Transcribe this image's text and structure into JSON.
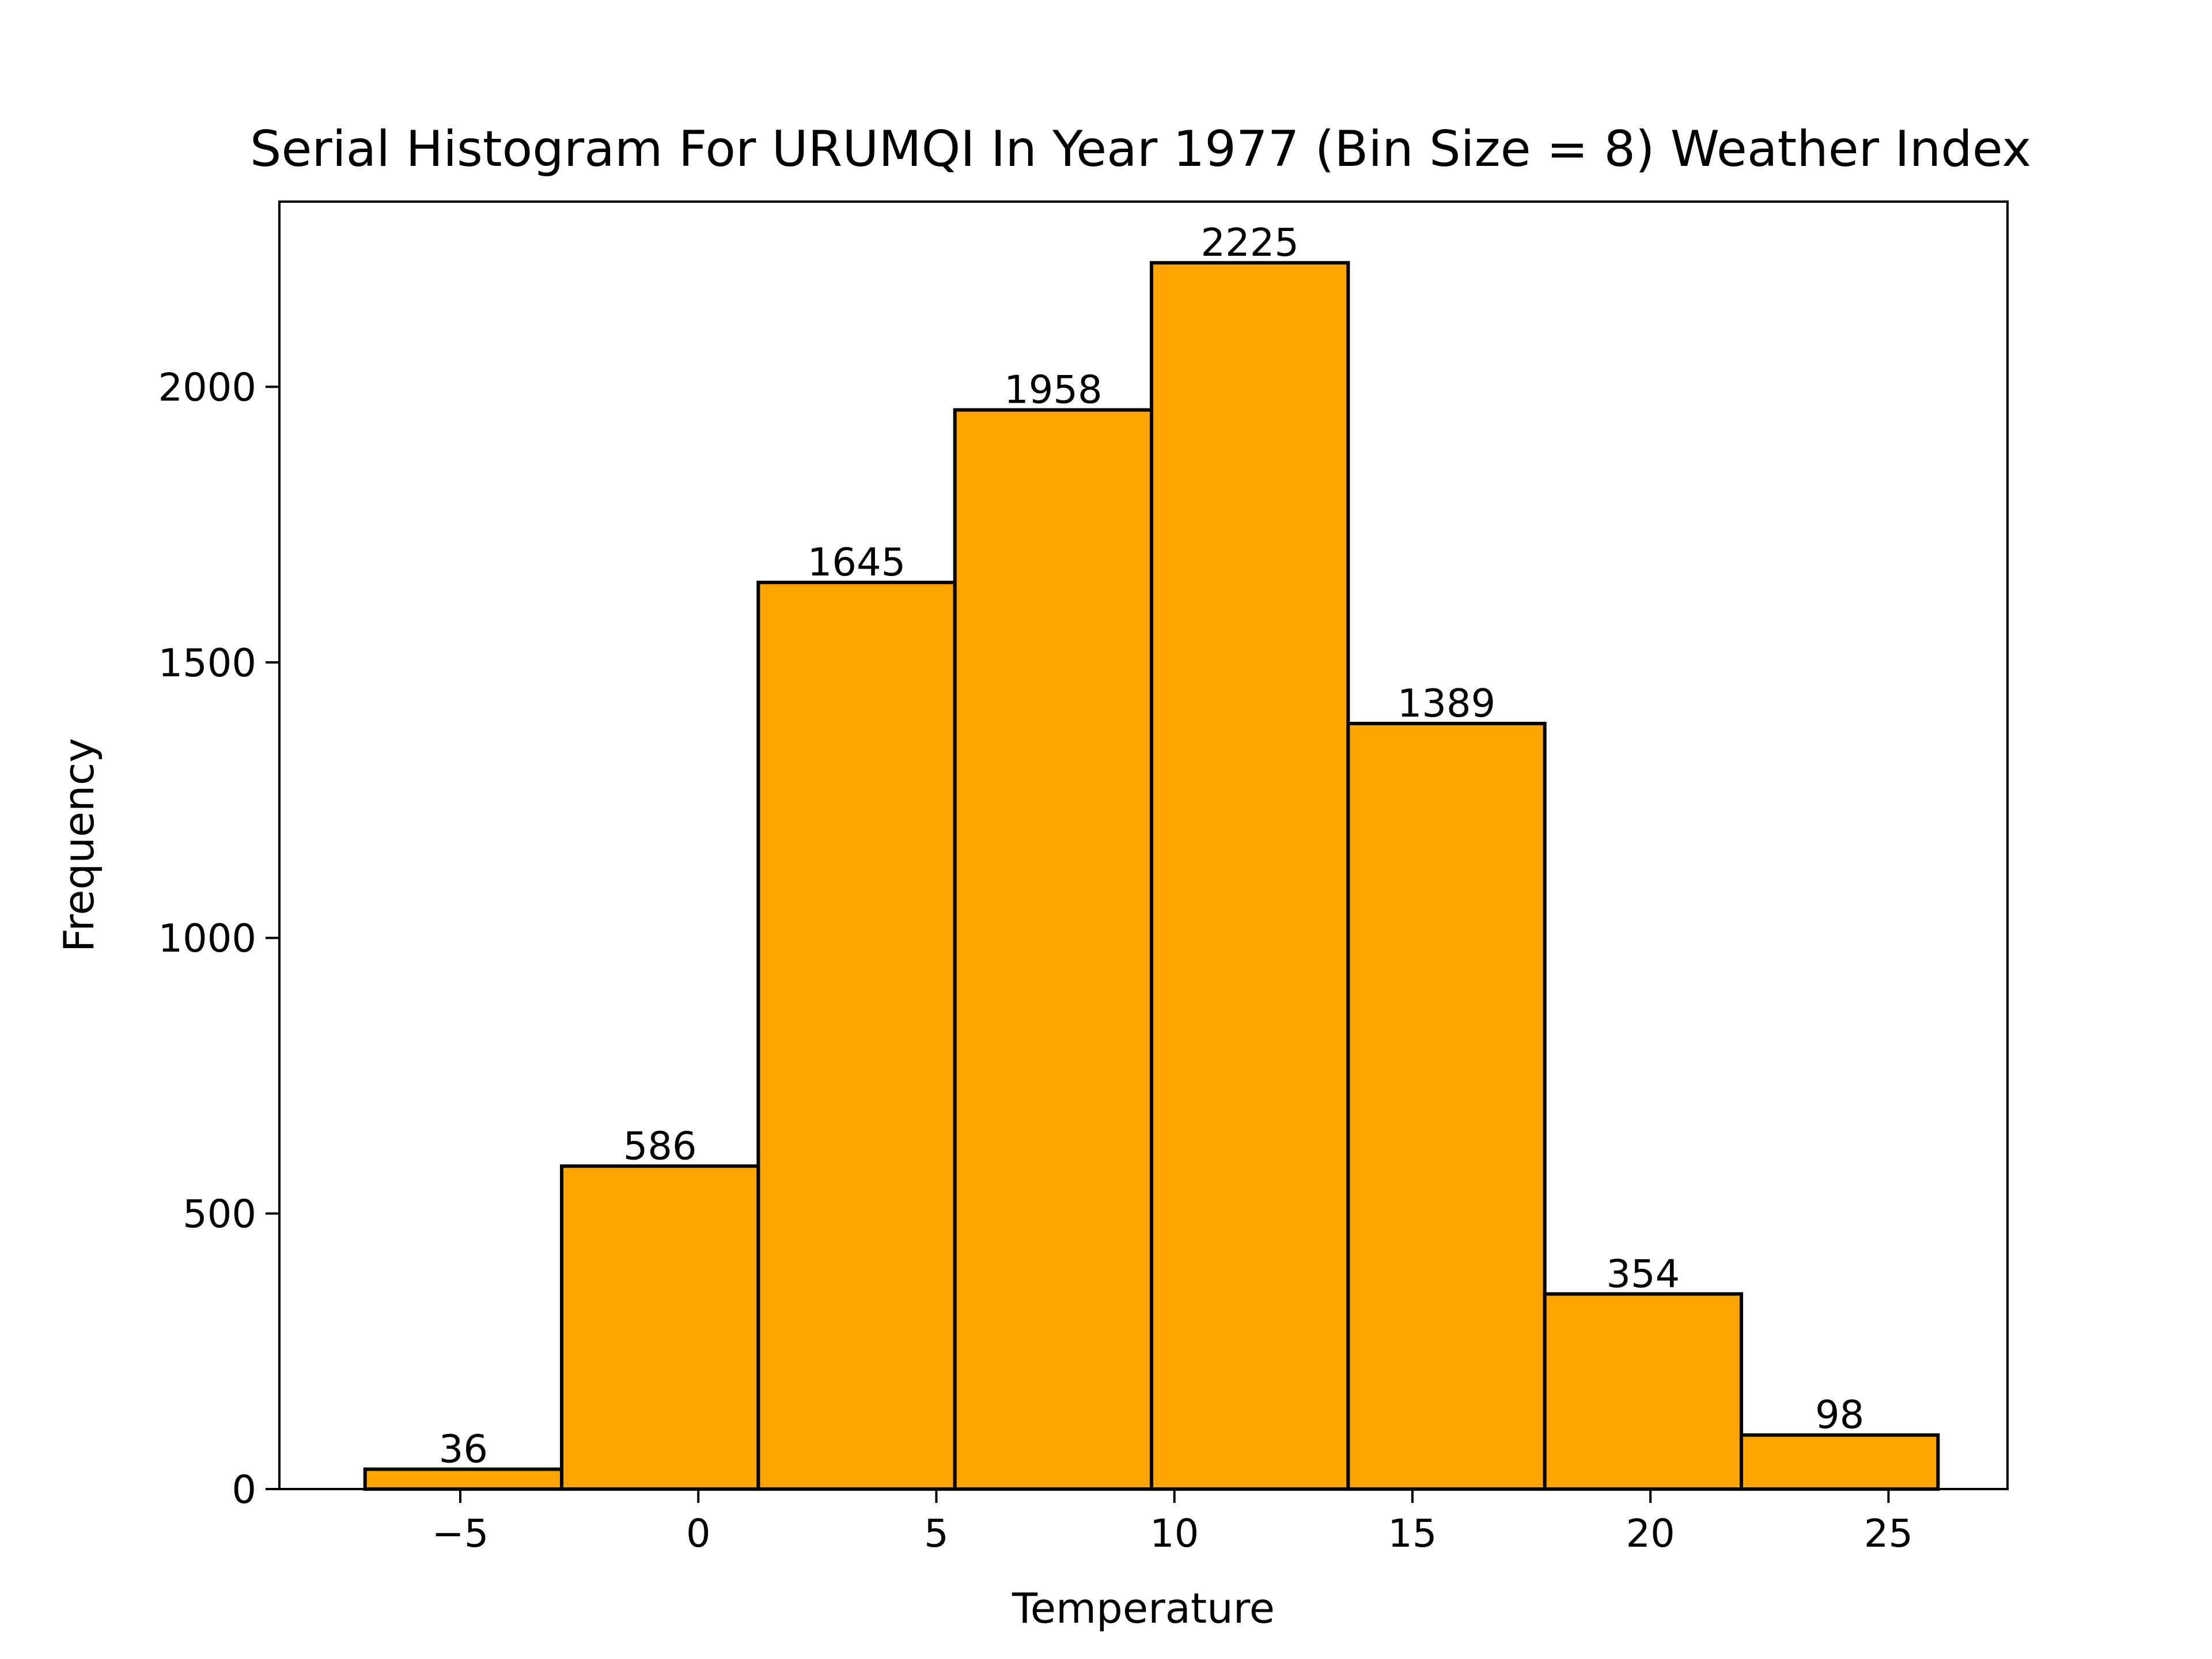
{
  "chart_data": {
    "type": "bar",
    "title": "Serial Histogram For URUMQI In Year 1977 (Bin Size = 8) Weather Index",
    "xlabel": "Temperature",
    "ylabel": "Frequency",
    "xlim": [
      -8.8,
      27.5
    ],
    "ylim": [
      0,
      2336
    ],
    "x_ticks": [
      -5,
      0,
      5,
      10,
      15,
      20,
      25
    ],
    "x_tick_labels": [
      "−5",
      "0",
      "5",
      "10",
      "15",
      "20",
      "25"
    ],
    "y_ticks": [
      0,
      500,
      1000,
      1500,
      2000
    ],
    "y_tick_labels": [
      "0",
      "500",
      "1000",
      "1500",
      "2000"
    ],
    "bin_edges": [
      -7.0,
      -2.87,
      1.26,
      5.39,
      9.52,
      13.65,
      17.78,
      21.91,
      26.04
    ],
    "values": [
      36,
      586,
      1645,
      1958,
      2225,
      1389,
      354,
      98
    ],
    "value_labels": [
      "36",
      "586",
      "1645",
      "1958",
      "2225",
      "1389",
      "354",
      "98"
    ],
    "bar_color": "#ffa500",
    "edge_color": "#000000",
    "grid": false,
    "legend": "none"
  }
}
